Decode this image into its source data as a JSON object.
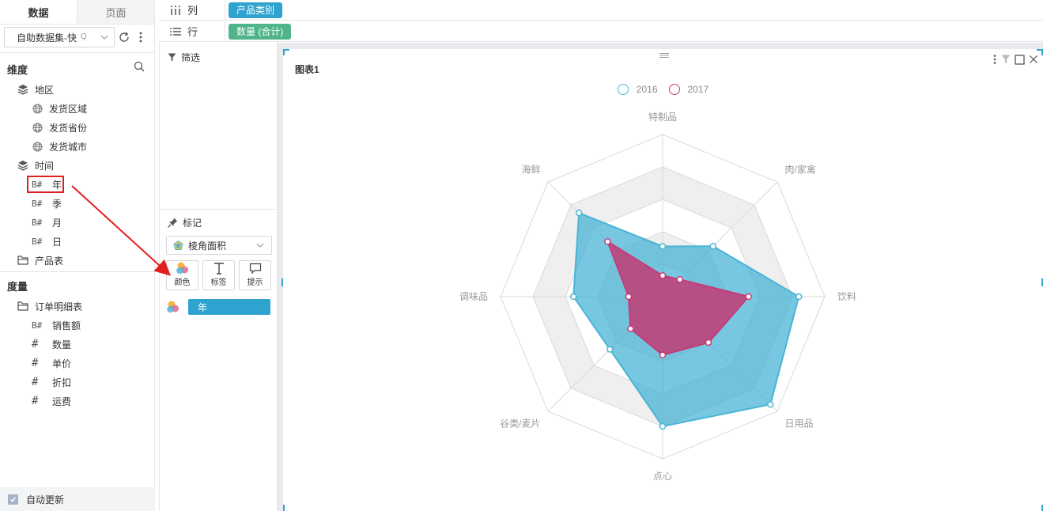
{
  "left_panel": {
    "tabs": [
      {
        "label": "数据",
        "active": true
      },
      {
        "label": "页面",
        "active": false
      }
    ],
    "dataset": {
      "value": "自助数据集-快",
      "search_hint": "Q"
    },
    "dimensions_header": "维度",
    "tree_region": {
      "label": "地区",
      "children": [
        "发货区域",
        "发货省份",
        "发货城市"
      ]
    },
    "tree_time": {
      "label": "时间",
      "children": [
        {
          "hash": "B#",
          "label": "年"
        },
        {
          "hash": "B#",
          "label": "季"
        },
        {
          "hash": "B#",
          "label": "月"
        },
        {
          "hash": "B#",
          "label": "日"
        }
      ]
    },
    "tree_product": {
      "label": "产品表"
    },
    "measures_header": "度量",
    "tree_orders": {
      "label": "订单明细表",
      "children": [
        {
          "hash": "B#",
          "label": "销售额"
        },
        {
          "hash": "#",
          "label": "数量"
        },
        {
          "hash": "#",
          "label": "单价"
        },
        {
          "hash": "#",
          "label": "折扣"
        },
        {
          "hash": "#",
          "label": "运费"
        }
      ]
    },
    "auto_update": {
      "label": "自动更新",
      "checked": true
    }
  },
  "shelves": {
    "columns": {
      "label": "列",
      "pill": "产品类别"
    },
    "rows": {
      "label": "行",
      "pill": "数量 (合计)"
    }
  },
  "middle_panel": {
    "filter_label": "筛选",
    "marks_label": "标记",
    "mark_type": "棱角面积",
    "mark_buttons": [
      {
        "label": "颜色",
        "icon": "color-icon"
      },
      {
        "label": "标签",
        "icon": "text-icon"
      },
      {
        "label": "提示",
        "icon": "tooltip-icon"
      }
    ],
    "color_field": "年"
  },
  "chart_card": {
    "title": "图表1",
    "chart_data": {
      "type": "radar",
      "categories": [
        "特制品",
        "肉/家禽",
        "饮料",
        "日用品",
        "点心",
        "谷类/麦片",
        "调味品",
        "海鲜"
      ],
      "rmax": 100,
      "levels": 5,
      "series": [
        {
          "name": "2016",
          "color": "#4ab4d6",
          "fill": "rgba(60,175,210,0.70)",
          "values": [
            31,
            44,
            84,
            94,
            80,
            46,
            55,
            73
          ]
        },
        {
          "name": "2017",
          "color": "#c73a77",
          "fill": "rgba(200,50,110,0.80)",
          "values": [
            13,
            15,
            53,
            40,
            36,
            28,
            21,
            48
          ]
        }
      ]
    }
  }
}
